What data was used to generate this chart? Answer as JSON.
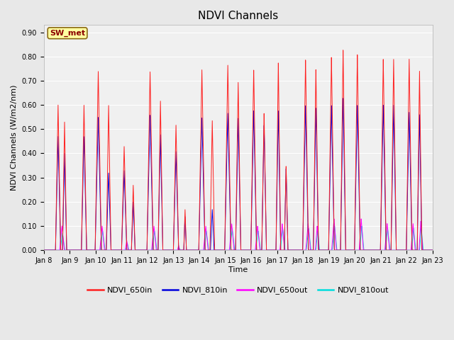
{
  "title": "NDVI Channels",
  "xlabel": "Time",
  "ylabel": "NDVI Channels (W/m2/nm)",
  "ylim": [
    0.0,
    0.93
  ],
  "yticks": [
    0.0,
    0.1,
    0.2,
    0.3,
    0.4,
    0.5,
    0.6,
    0.7,
    0.8,
    0.9
  ],
  "annotation_text": "SW_met",
  "annotation_color": "#8B0000",
  "annotation_bg": "#FFFFA0",
  "annotation_edge": "#8B6914",
  "line_colors": {
    "NDVI_650in": "#FF2020",
    "NDVI_810in": "#0000DD",
    "NDVI_650out": "#FF00FF",
    "NDVI_810out": "#00DDDD"
  },
  "legend_labels": [
    "NDVI_650in",
    "NDVI_810in",
    "NDVI_650out",
    "NDVI_810out"
  ],
  "fig_bg": "#E8E8E8",
  "plot_bg": "#F0F0F0",
  "grid_color": "#FFFFFF",
  "title_fontsize": 11,
  "axis_label_fontsize": 8,
  "tick_fontsize": 7,
  "legend_fontsize": 8
}
